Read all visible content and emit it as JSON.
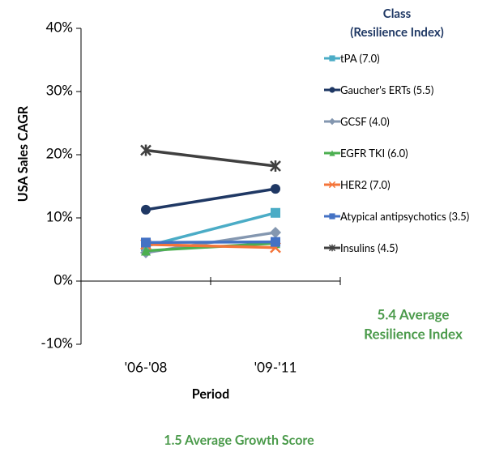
{
  "chart_data": {
    "type": "line",
    "y_axis_label": "USA Sales CAGR",
    "x_axis_label": "Period",
    "categories": [
      "'06-'08",
      "'09-'11"
    ],
    "ylim": [
      -10,
      40
    ],
    "yticks": [
      {
        "value": -10,
        "label": "-10%"
      },
      {
        "value": 0,
        "label": "0%"
      },
      {
        "value": 10,
        "label": "10%"
      },
      {
        "value": 20,
        "label": "20%"
      },
      {
        "value": 30,
        "label": "30%"
      },
      {
        "value": 40,
        "label": "40%"
      }
    ],
    "legend_title": [
      "Class",
      "(Resilience Index)"
    ],
    "series": [
      {
        "name": "tPA (7.0)",
        "color": "#4bacc6",
        "marker": "square",
        "values": [
          5.5,
          10.8
        ]
      },
      {
        "name": "Gaucher's ERTs (5.5)",
        "color": "#1f3864",
        "marker": "circle",
        "values": [
          11.3,
          14.6
        ]
      },
      {
        "name": "GCSF (4.0)",
        "color": "#8497b0",
        "marker": "diamond",
        "values": [
          4.5,
          7.7
        ]
      },
      {
        "name": "EGFR TKI (6.0)",
        "color": "#4caf50",
        "marker": "triangle",
        "values": [
          4.8,
          6.0
        ]
      },
      {
        "name": "HER2 (7.0)",
        "color": "#f4753a",
        "marker": "x",
        "values": [
          5.8,
          5.3
        ]
      },
      {
        "name": "Atypical antipsychotics (3.5)",
        "color": "#4472c4",
        "marker": "square",
        "values": [
          6.1,
          6.2
        ]
      },
      {
        "name": "Insulins (4.5)",
        "color": "#404040",
        "marker": "star",
        "values": [
          20.7,
          18.2
        ]
      }
    ],
    "annotations": [
      {
        "lines": [
          "5.4 Average",
          "Resilience Index"
        ]
      },
      {
        "lines": [
          "1.5 Average Growth Score"
        ]
      }
    ]
  }
}
